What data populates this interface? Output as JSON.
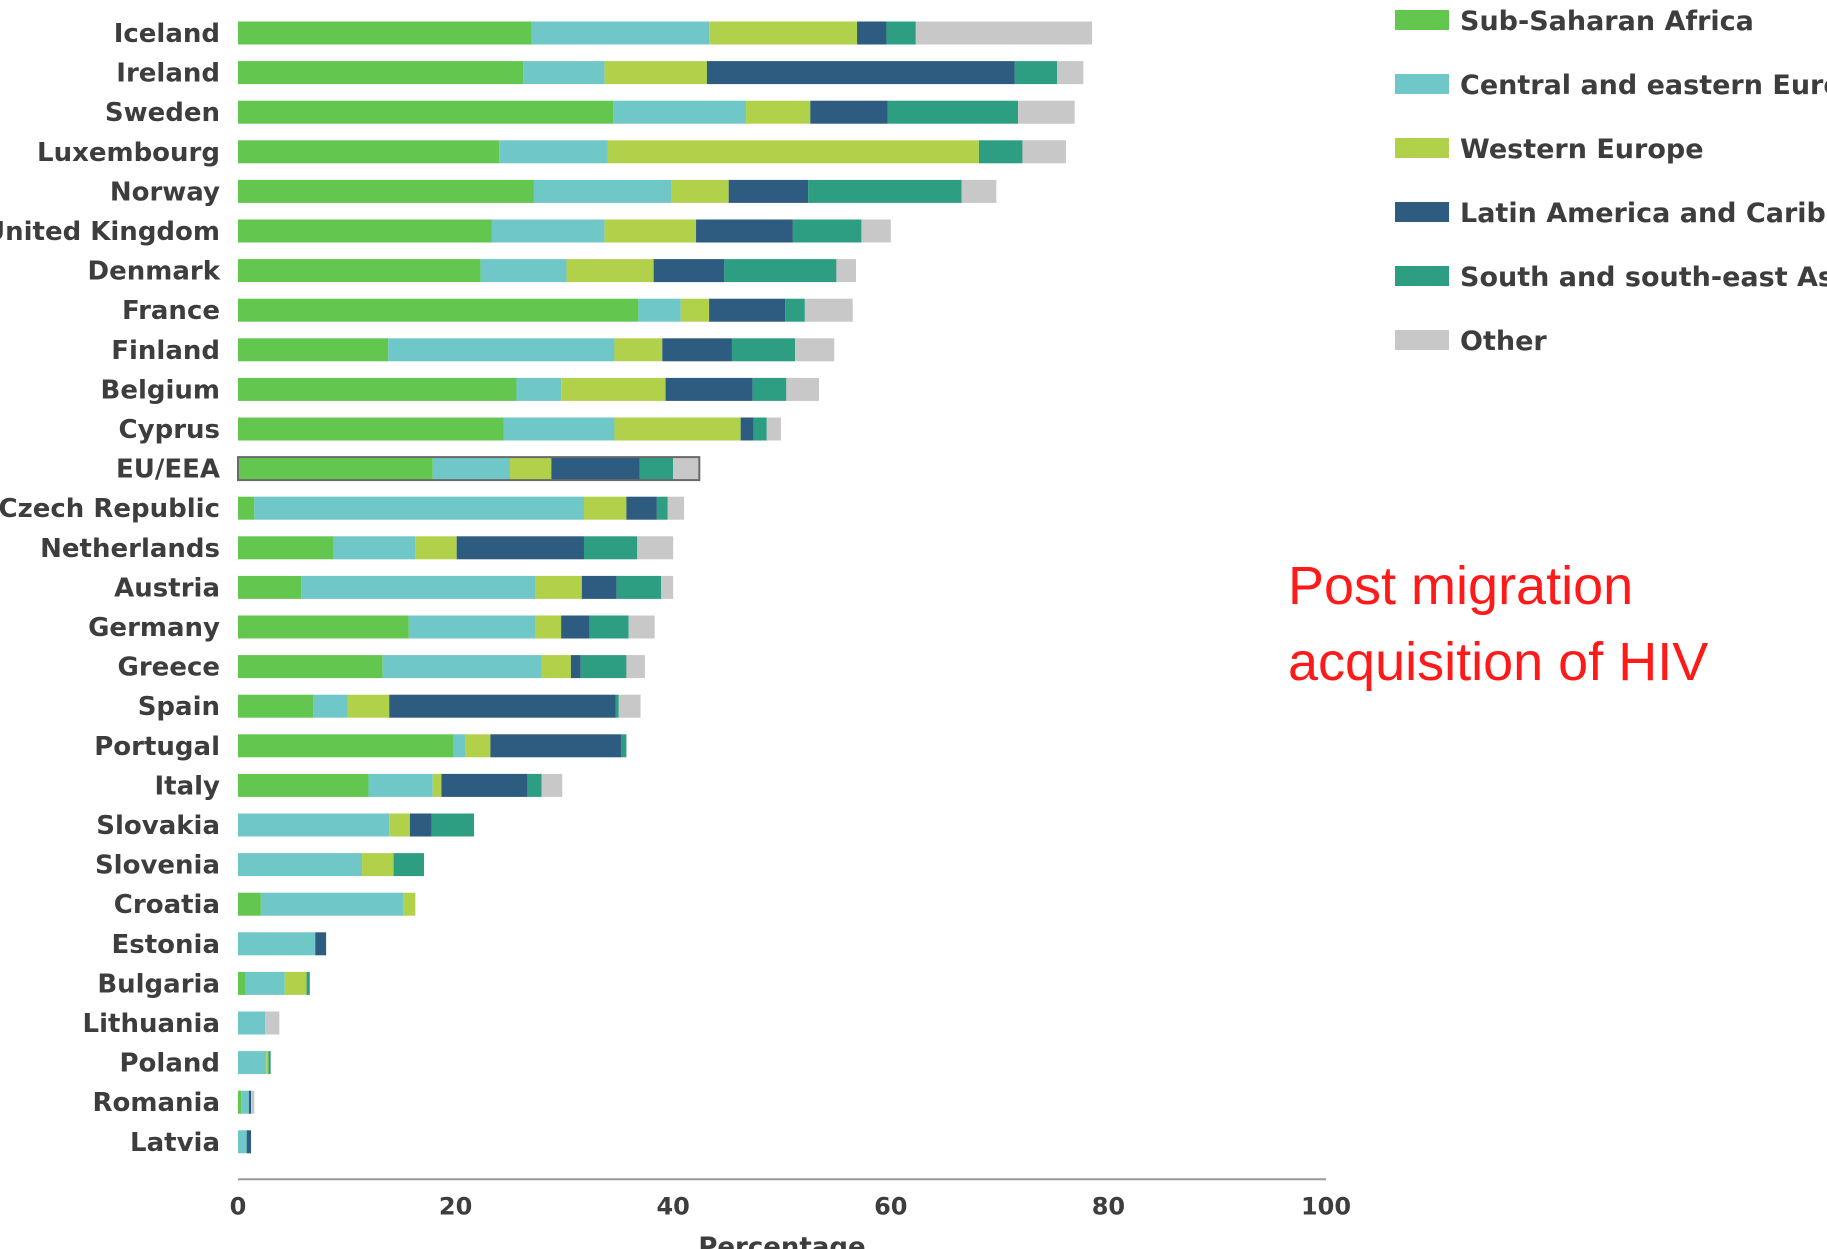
{
  "chart_data": {
    "type": "bar",
    "orientation": "horizontal",
    "stacked": true,
    "title": "",
    "xlabel": "Percentage",
    "ylabel": "",
    "xlim": [
      0,
      100
    ],
    "xticks": [
      0,
      20,
      40,
      60,
      80,
      100
    ],
    "legend_position": "top-right",
    "grid": false,
    "highlight_category": "EU/EEA",
    "categories": [
      "Iceland",
      "Ireland",
      "Sweden",
      "Luxembourg",
      "Norway",
      "United Kingdom",
      "Denmark",
      "France",
      "Finland",
      "Belgium",
      "Cyprus",
      "EU/EEA",
      "Czech Republic",
      "Netherlands",
      "Austria",
      "Germany",
      "Greece",
      "Spain",
      "Portugal",
      "Italy",
      "Slovakia",
      "Slovenia",
      "Croatia",
      "Estonia",
      "Bulgaria",
      "Lithuania",
      "Poland",
      "Romania",
      "Latvia"
    ],
    "series": [
      {
        "name": "Sub-Saharan Africa",
        "color": "#63c64f",
        "values": [
          27,
          26.2,
          34.5,
          24,
          27.2,
          23.3,
          22.3,
          36.8,
          13.8,
          25.6,
          24.4,
          17.9,
          1.5,
          8.8,
          5.8,
          15.7,
          13.3,
          6.9,
          19.8,
          12,
          0,
          0,
          2.1,
          0,
          0.7,
          0,
          0,
          0.3,
          0
        ]
      },
      {
        "name": "Central and eastern Europe",
        "color": "#6fc7c7",
        "values": [
          16.3,
          7.5,
          12.2,
          10,
          12.6,
          10.4,
          7.9,
          3.9,
          20.8,
          4.1,
          10.2,
          7.1,
          30.3,
          7.5,
          21.5,
          11.6,
          14.6,
          3.2,
          1.1,
          5.9,
          13.9,
          11.4,
          13.1,
          7.1,
          3.6,
          2.5,
          2.6,
          0.7,
          0.8
        ]
      },
      {
        "name": "Western Europe",
        "color": "#b2d14a",
        "values": [
          13.6,
          9.4,
          5.9,
          34.1,
          5.3,
          8.4,
          8,
          2.6,
          4.4,
          9.6,
          11.6,
          3.8,
          3.9,
          3.8,
          4.3,
          2.4,
          2.7,
          3.8,
          2.3,
          0.8,
          1.9,
          2.9,
          1.1,
          0,
          2,
          0,
          0.2,
          0,
          0
        ]
      },
      {
        "name": "Latin America and Caribbean",
        "color": "#2e5b80",
        "values": [
          2.7,
          28.3,
          7.1,
          0,
          7.3,
          8.9,
          6.5,
          7,
          6.4,
          8,
          1.2,
          8.1,
          2.8,
          11.7,
          3.2,
          2.6,
          0.9,
          20.8,
          12,
          7.9,
          2,
          0,
          0,
          1,
          0,
          0,
          0,
          0.2,
          0.4
        ]
      },
      {
        "name": "South and south-east Asia",
        "color": "#2e9e82",
        "values": [
          2.7,
          3.9,
          12,
          4,
          14.1,
          6.3,
          10.3,
          1.8,
          5.8,
          3.1,
          1.2,
          3.1,
          1,
          4.9,
          4.1,
          3.6,
          4.2,
          0.3,
          0.5,
          1.3,
          3.9,
          2.8,
          0,
          0,
          0.3,
          0,
          0.2,
          0,
          0
        ]
      },
      {
        "name": "Other",
        "color": "#c8c8c8",
        "values": [
          16.2,
          2.4,
          5.2,
          4,
          3.2,
          2.7,
          1.8,
          4.4,
          3.6,
          3,
          1.3,
          2.4,
          1.5,
          3.3,
          1.1,
          2.4,
          1.7,
          2,
          0,
          1.9,
          0,
          0,
          0,
          0,
          0,
          1.3,
          0,
          0.3,
          0
        ]
      }
    ]
  },
  "annotation": {
    "line1": "Post migration",
    "line2": "acquisition of HIV"
  }
}
